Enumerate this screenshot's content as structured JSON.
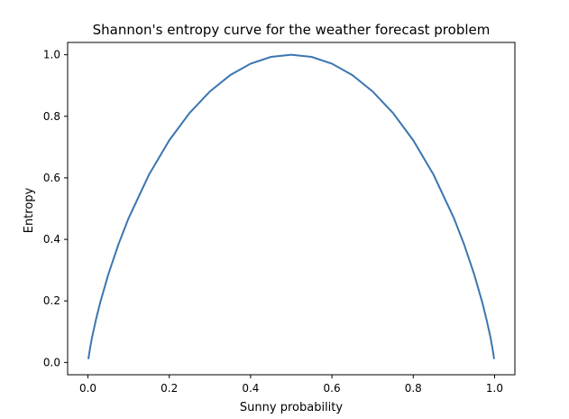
{
  "chart_data": {
    "type": "line",
    "title": "Shannon's entropy curve for the weather forecast problem",
    "xlabel": "Sunny probability",
    "ylabel": "Entropy",
    "xlim": [
      -0.05,
      1.05
    ],
    "ylim": [
      -0.04,
      1.04
    ],
    "grid": false,
    "xticks": [
      "0.0",
      "0.2",
      "0.4",
      "0.6",
      "0.8",
      "1.0"
    ],
    "yticks": [
      "0.0",
      "0.2",
      "0.4",
      "0.6",
      "0.8",
      "1.0"
    ],
    "line_color": "#3b76af",
    "series": [
      {
        "x": [
          0.001,
          0.005,
          0.01,
          0.02,
          0.03,
          0.05,
          0.075,
          0.1,
          0.15,
          0.2,
          0.25,
          0.3,
          0.35,
          0.4,
          0.45,
          0.5,
          0.55,
          0.6,
          0.65,
          0.7,
          0.75,
          0.8,
          0.85,
          0.9,
          0.925,
          0.95,
          0.97,
          0.98,
          0.99,
          0.995,
          0.999
        ],
        "y": [
          0.011,
          0.045,
          0.081,
          0.141,
          0.194,
          0.286,
          0.384,
          0.469,
          0.61,
          0.722,
          0.811,
          0.881,
          0.934,
          0.971,
          0.993,
          1.0,
          0.993,
          0.971,
          0.934,
          0.881,
          0.811,
          0.722,
          0.61,
          0.469,
          0.384,
          0.286,
          0.194,
          0.141,
          0.081,
          0.045,
          0.011
        ]
      }
    ]
  }
}
